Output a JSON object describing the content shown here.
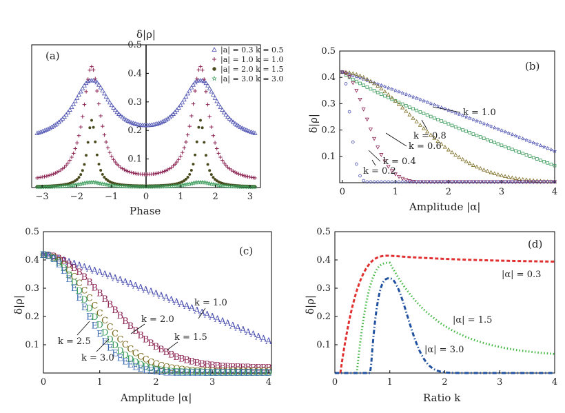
{
  "chart_data": [
    {
      "type": "scatter",
      "panel_label": "(a)",
      "xlabel": "Phase",
      "ylabel": "δ|ρ|",
      "xlim": [
        -3.3,
        3.3
      ],
      "ylim": [
        0,
        0.5
      ],
      "x_ticks": [
        -3,
        -2,
        -1,
        0,
        1,
        2,
        3
      ],
      "x_tick_labels": [
        "−3",
        "−2",
        "−1",
        "0",
        "1",
        "2",
        "3"
      ],
      "y_ticks": [
        0.1,
        0.2,
        0.3,
        0.4,
        0.5
      ],
      "y_tick_labels": [
        "0.1",
        "0.2",
        "0.3",
        "0.4",
        "0.5"
      ],
      "grid": false,
      "legend_position": "top-right",
      "series": [
        {
          "name": "|a| = 0.3  k = 0.5",
          "marker": "triangle-up",
          "color": "#4a4fb0",
          "peak": 0.37,
          "base": 0.155,
          "width": 0.65
        },
        {
          "name": "|a| = 1.0  k = 1.0",
          "marker": "plus",
          "color": "#8b2252",
          "peak": 0.42,
          "base": 0.018,
          "width": 0.3
        },
        {
          "name": "|a| = 2.0  k = 1.5",
          "marker": "dot",
          "color": "#4a4a1e",
          "peak": 0.235,
          "base": 0.002,
          "width": 0.15
        },
        {
          "name": "|a| = 3.0  k = 3.0",
          "marker": "star",
          "color": "#3a9b5a",
          "peak": 0.018,
          "base": 0.0,
          "width": 0.45
        }
      ]
    },
    {
      "type": "scatter",
      "panel_label": "(b)",
      "xlabel": "Amplitude |α|",
      "ylabel": "δ|ρ|",
      "xlim": [
        -0.05,
        4
      ],
      "ylim": [
        0,
        0.5
      ],
      "x_ticks": [
        0,
        1,
        2,
        3,
        4
      ],
      "x_tick_labels": [
        "0",
        "1",
        "2",
        "3",
        "4"
      ],
      "y_ticks": [
        0.1,
        0.2,
        0.3,
        0.4,
        0.5
      ],
      "y_tick_labels": [
        "0.1",
        "0.2",
        "0.3",
        "0.4",
        "0.5"
      ],
      "grid": false,
      "series": [
        {
          "label": "k = 1.0",
          "marker": "star",
          "color": "#4a4fb0",
          "y0": 0.42,
          "end": 0.12
        },
        {
          "label": "k = 0.8",
          "marker": "square",
          "color": "#3a9b5a",
          "y0": 0.42,
          "end": 0.065
        },
        {
          "label": "k = 0.6",
          "marker": "triangle-up",
          "color": "#7a6a1e",
          "y0": 0.42,
          "end": 0.0
        },
        {
          "label": "k = 0.4",
          "marker": "triangle-down",
          "color": "#8b2252",
          "y0": 0.42,
          "end": 0.0
        },
        {
          "label": "k = 0.2",
          "marker": "circle",
          "color": "#4a4fb0",
          "y0": 0.42,
          "end": 0.0
        }
      ],
      "annotations": [
        "k = 1.0",
        "k = 0.8",
        "k = 0.6",
        "k = 0.4",
        "k = 0.2"
      ]
    },
    {
      "type": "scatter",
      "panel_label": "(c)",
      "xlabel": "Amplitude |α|",
      "ylabel": "δ|ρ|",
      "xlim": [
        0,
        4.05
      ],
      "ylim": [
        0,
        0.5
      ],
      "x_ticks": [
        0,
        1,
        2,
        3,
        4
      ],
      "x_tick_labels": [
        "0",
        "1",
        "2",
        "3",
        "4"
      ],
      "y_ticks": [
        0.1,
        0.2,
        0.3,
        0.4,
        0.5
      ],
      "y_tick_labels": [
        "0.1",
        "0.2",
        "0.3",
        "0.4",
        "0.5"
      ],
      "grid": false,
      "series": [
        {
          "label": "k = 1.0",
          "marker_letter": "A",
          "color": "#4a4fb0",
          "y0": 0.42,
          "end": 0.115
        },
        {
          "label": "k = 1.5",
          "marker_letter": "B",
          "color": "#8b2252",
          "y0": 0.42,
          "end": 0.02
        },
        {
          "label": "k = 2.0",
          "marker_letter": "C",
          "color": "#7a6a1e",
          "y0": 0.42,
          "end": 0.008
        },
        {
          "label": "k = 2.5",
          "marker_letter": "D",
          "color": "#3a9b5a",
          "y0": 0.42,
          "end": 0.004
        },
        {
          "label": "k = 3.0",
          "marker_letter": "E",
          "color": "#3a6ab0",
          "y0": 0.42,
          "end": 0.002
        }
      ],
      "annotations": [
        "k = 1.0",
        "k = 2.0",
        "k = 1.5",
        "k = 2.5",
        "k = 3.0"
      ]
    },
    {
      "type": "line",
      "panel_label": "(d)",
      "xlabel": "Ratio k",
      "ylabel": "δ|ρ|",
      "xlim": [
        0,
        4
      ],
      "ylim": [
        0,
        0.5
      ],
      "x_ticks": [
        0,
        1,
        2,
        3,
        4
      ],
      "x_tick_labels": [
        "0",
        "1",
        "2",
        "3",
        "4"
      ],
      "y_ticks": [
        0.1,
        0.2,
        0.3,
        0.4,
        0.5
      ],
      "y_tick_labels": [
        "0.1",
        "0.2",
        "0.3",
        "0.4",
        "0.5"
      ],
      "grid": false,
      "series": [
        {
          "label": "|α| = 0.3",
          "style": "dashed",
          "color": "#e03030",
          "start_k": 0.1,
          "peak_k": 1.0,
          "peak": 0.415,
          "end": 0.39
        },
        {
          "label": "|α| = 1.5",
          "style": "dotted",
          "color": "#40b840",
          "start_k": 0.4,
          "peak_k": 1.0,
          "peak": 0.39,
          "end": 0.055
        },
        {
          "label": "|α| = 3.0",
          "style": "dash-dot",
          "color": "#2050a0",
          "start_k": 0.65,
          "peak_k": 1.0,
          "peak": 0.335,
          "end": 0.0
        }
      ],
      "annotations": [
        "|α| = 0.3",
        "|α| = 1.5",
        "|α| = 3.0"
      ]
    }
  ]
}
